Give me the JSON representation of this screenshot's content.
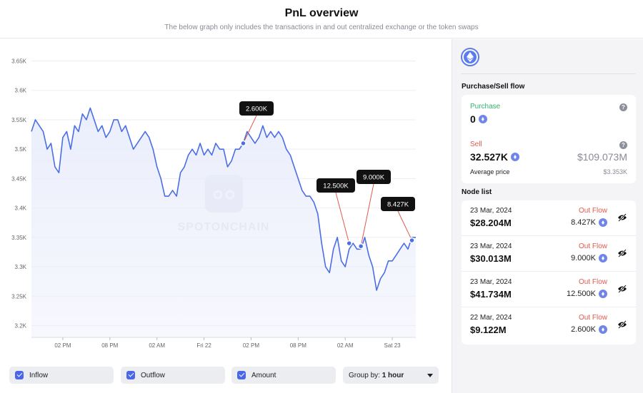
{
  "header": {
    "title": "PnL overview",
    "subtitle": "The below graph only includes the transactions in and out centralized exchange or the token swaps"
  },
  "chart_data": {
    "type": "line",
    "title": "",
    "xlabel": "",
    "ylabel": "",
    "ylim": [
      3.18,
      3.67
    ],
    "yticks": [
      3.2,
      3.25,
      3.3,
      3.35,
      3.4,
      3.45,
      3.5,
      3.55,
      3.6,
      3.65
    ],
    "ytick_labels": [
      "3.2K",
      "3.25K",
      "3.3K",
      "3.35K",
      "3.4K",
      "3.45K",
      "3.5K",
      "3.55K",
      "3.6K",
      "3.65K"
    ],
    "xlim": [
      0,
      49
    ],
    "xticks": [
      4,
      10,
      16,
      22,
      28,
      34,
      40,
      46
    ],
    "xtick_labels": [
      "02 PM",
      "08 PM",
      "02 AM",
      "Fri 22",
      "02 PM",
      "08 PM",
      "02 AM",
      "Sat 23"
    ],
    "grid": true,
    "series": [
      {
        "points": [
          [
            0,
            3.53
          ],
          [
            0.5,
            3.55
          ],
          [
            1,
            3.54
          ],
          [
            1.5,
            3.53
          ],
          [
            2,
            3.5
          ],
          [
            2.5,
            3.51
          ],
          [
            3,
            3.47
          ],
          [
            3.5,
            3.46
          ],
          [
            4,
            3.52
          ],
          [
            4.5,
            3.53
          ],
          [
            5,
            3.5
          ],
          [
            5.5,
            3.54
          ],
          [
            6,
            3.53
          ],
          [
            6.5,
            3.56
          ],
          [
            7,
            3.55
          ],
          [
            7.5,
            3.57
          ],
          [
            8,
            3.55
          ],
          [
            8.5,
            3.53
          ],
          [
            9,
            3.54
          ],
          [
            9.5,
            3.52
          ],
          [
            10,
            3.53
          ],
          [
            10.5,
            3.55
          ],
          [
            11,
            3.55
          ],
          [
            11.5,
            3.53
          ],
          [
            12,
            3.54
          ],
          [
            12.5,
            3.52
          ],
          [
            13,
            3.5
          ],
          [
            13.5,
            3.51
          ],
          [
            14,
            3.52
          ],
          [
            14.5,
            3.53
          ],
          [
            15,
            3.52
          ],
          [
            15.5,
            3.5
          ],
          [
            16,
            3.47
          ],
          [
            16.5,
            3.45
          ],
          [
            17,
            3.42
          ],
          [
            17.5,
            3.42
          ],
          [
            18,
            3.43
          ],
          [
            18.5,
            3.42
          ],
          [
            19,
            3.46
          ],
          [
            19.5,
            3.47
          ],
          [
            20,
            3.49
          ],
          [
            20.5,
            3.5
          ],
          [
            21,
            3.49
          ],
          [
            21.5,
            3.51
          ],
          [
            22,
            3.49
          ],
          [
            22.5,
            3.5
          ],
          [
            23,
            3.49
          ],
          [
            23.5,
            3.51
          ],
          [
            24,
            3.5
          ],
          [
            24.5,
            3.5
          ],
          [
            25,
            3.47
          ],
          [
            25.5,
            3.48
          ],
          [
            26,
            3.5
          ],
          [
            26.5,
            3.5
          ],
          [
            27,
            3.51
          ],
          [
            27.5,
            3.53
          ],
          [
            28,
            3.52
          ],
          [
            28.5,
            3.51
          ],
          [
            29,
            3.52
          ],
          [
            29.5,
            3.54
          ],
          [
            30,
            3.52
          ],
          [
            30.5,
            3.53
          ],
          [
            31,
            3.52
          ],
          [
            31.5,
            3.53
          ],
          [
            32,
            3.52
          ],
          [
            32.5,
            3.5
          ],
          [
            33,
            3.49
          ],
          [
            33.5,
            3.47
          ],
          [
            34,
            3.45
          ],
          [
            34.5,
            3.43
          ],
          [
            35,
            3.42
          ],
          [
            35.5,
            3.42
          ],
          [
            36,
            3.41
          ],
          [
            36.5,
            3.39
          ],
          [
            37,
            3.34
          ],
          [
            37.5,
            3.3
          ],
          [
            38,
            3.29
          ],
          [
            38.5,
            3.33
          ],
          [
            39,
            3.35
          ],
          [
            39.5,
            3.31
          ],
          [
            40,
            3.3
          ],
          [
            40.5,
            3.33
          ],
          [
            41,
            3.34
          ],
          [
            41.5,
            3.33
          ],
          [
            42,
            3.33
          ],
          [
            42.5,
            3.35
          ],
          [
            43,
            3.32
          ],
          [
            43.5,
            3.3
          ],
          [
            44,
            3.26
          ],
          [
            44.5,
            3.28
          ],
          [
            45,
            3.29
          ],
          [
            45.5,
            3.31
          ],
          [
            46,
            3.31
          ],
          [
            46.5,
            3.32
          ],
          [
            47,
            3.33
          ],
          [
            47.5,
            3.34
          ],
          [
            48,
            3.33
          ],
          [
            48.5,
            3.35
          ],
          [
            49,
            3.35
          ]
        ]
      }
    ],
    "annotations": [
      {
        "label": "2.600K",
        "x": 27,
        "y": 3.51
      },
      {
        "label": "12.500K",
        "x": 40.5,
        "y": 3.34
      },
      {
        "label": "9.000K",
        "x": 42,
        "y": 3.335
      },
      {
        "label": "8.427K",
        "x": 48.5,
        "y": 3.345
      }
    ],
    "watermark": "SPOTONCHAIN",
    "colors": {
      "line": "#4a6ee6",
      "fill": "#e8ecfb",
      "tooltip": "#111111"
    }
  },
  "controls": {
    "inflow": "Inflow",
    "outflow": "Outflow",
    "amount": "Amount",
    "group_by_label": "Group by:",
    "group_by_value": "1 hour"
  },
  "side": {
    "token_icon": "ethereum-icon",
    "purchase_sell_title": "Purchase/Sell flow",
    "purchase_label": "Purchase",
    "purchase_value": "0",
    "sell_label": "Sell",
    "sell_value": "32.527K",
    "sell_usd": "$109.073M",
    "avg_label": "Average price",
    "avg_value": "$3.353K",
    "node_list_title": "Node list",
    "nodes": [
      {
        "date": "23 Mar, 2024",
        "usd": "$28.204M",
        "flow": "Out Flow",
        "amount": "8.427K"
      },
      {
        "date": "23 Mar, 2024",
        "usd": "$30.013M",
        "flow": "Out Flow",
        "amount": "9.000K"
      },
      {
        "date": "23 Mar, 2024",
        "usd": "$41.734M",
        "flow": "Out Flow",
        "amount": "12.500K"
      },
      {
        "date": "22 Mar, 2024",
        "usd": "$9.122M",
        "flow": "Out Flow",
        "amount": "2.600K"
      }
    ]
  }
}
